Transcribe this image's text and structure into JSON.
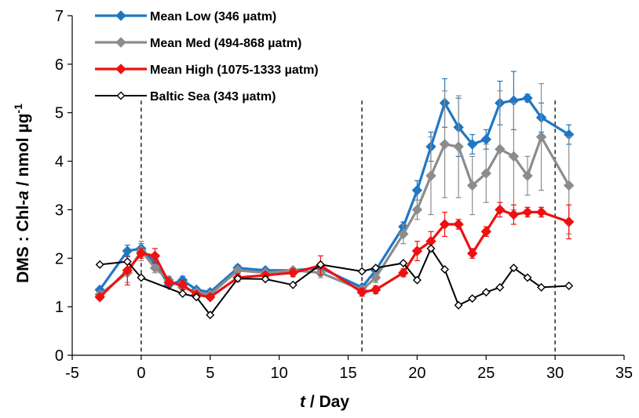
{
  "chart_data": {
    "type": "line",
    "xlabel_var": "t",
    "xlabel_unit": " / Day",
    "ylabel_main": "DMS : Chl-",
    "ylabel_var": "a",
    "ylabel_unit": " / nmol µg",
    "ylabel_sup": "-1",
    "xlim": [
      -5,
      35
    ],
    "ylim": [
      0,
      7
    ],
    "xticks": [
      -5,
      0,
      5,
      10,
      15,
      20,
      25,
      30,
      35
    ],
    "yticks": [
      0,
      1,
      2,
      3,
      4,
      5,
      6,
      7
    ],
    "grid": false,
    "legend_placement": "top-left",
    "vlines": [
      0,
      16,
      30
    ],
    "series": [
      {
        "name": "Mean Low (346 µatm)",
        "color": "#1f77c4",
        "marker": "diamond-filled",
        "x": [
          -3,
          -1,
          0,
          1,
          2,
          3,
          4,
          5,
          7,
          9,
          11,
          13,
          16,
          17,
          19,
          20,
          21,
          22,
          23,
          24,
          25,
          26,
          27,
          28,
          29,
          31
        ],
        "y": [
          1.35,
          2.15,
          2.2,
          1.9,
          1.45,
          1.55,
          1.35,
          1.3,
          1.8,
          1.75,
          1.75,
          1.8,
          1.4,
          1.75,
          2.65,
          3.4,
          4.3,
          5.2,
          4.7,
          4.35,
          4.45,
          5.2,
          5.25,
          5.3,
          4.9,
          4.55
        ],
        "err": [
          0.05,
          0.12,
          0.1,
          0.08,
          0.05,
          0.08,
          0.05,
          0.06,
          0.06,
          0.05,
          0.05,
          0.05,
          0.05,
          0.05,
          0.1,
          0.2,
          0.3,
          0.5,
          0.6,
          0.2,
          0.2,
          0.45,
          0.6,
          0.08,
          0.3,
          0.2
        ]
      },
      {
        "name": "Mean Med (494-868 µatm)",
        "color": "#8c8c8c",
        "marker": "diamond-filled",
        "x": [
          -3,
          -1,
          0,
          1,
          2,
          3,
          4,
          5,
          7,
          9,
          11,
          13,
          16,
          17,
          19,
          20,
          21,
          22,
          23,
          24,
          25,
          26,
          27,
          28,
          29,
          31
        ],
        "y": [
          1.25,
          1.7,
          2.15,
          1.8,
          1.55,
          1.4,
          1.3,
          1.25,
          1.75,
          1.7,
          1.75,
          1.7,
          1.35,
          1.6,
          2.5,
          3.0,
          3.7,
          4.35,
          4.3,
          3.5,
          3.75,
          4.25,
          4.1,
          3.7,
          4.5,
          3.5
        ],
        "err": [
          0.05,
          0.2,
          0.2,
          0.1,
          0.08,
          0.1,
          0.05,
          0.05,
          0.05,
          0.05,
          0.05,
          0.1,
          0.08,
          0.1,
          0.2,
          0.2,
          0.8,
          1.1,
          1.05,
          0.6,
          0.6,
          1.2,
          1.1,
          0.4,
          1.1,
          1.0
        ]
      },
      {
        "name": "Mean High (1075-1333 µatm)",
        "color": "#ee1111",
        "marker": "diamond-filled",
        "x": [
          -3,
          -1,
          0,
          1,
          2,
          3,
          4,
          5,
          7,
          9,
          11,
          13,
          16,
          17,
          19,
          20,
          21,
          22,
          23,
          24,
          25,
          26,
          27,
          28,
          29,
          31
        ],
        "y": [
          1.2,
          1.75,
          2.1,
          2.05,
          1.5,
          1.45,
          1.25,
          1.2,
          1.6,
          1.65,
          1.7,
          1.85,
          1.3,
          1.35,
          1.7,
          2.15,
          2.35,
          2.7,
          2.7,
          2.1,
          2.55,
          3.0,
          2.9,
          2.95,
          2.95,
          2.75
        ],
        "err": [
          0.05,
          0.3,
          0.1,
          0.15,
          0.1,
          0.1,
          0.05,
          0.05,
          0.08,
          0.05,
          0.08,
          0.2,
          0.08,
          0.08,
          0.08,
          0.2,
          0.2,
          0.25,
          0.1,
          0.1,
          0.1,
          0.15,
          0.2,
          0.1,
          0.1,
          0.35
        ]
      },
      {
        "name": "Baltic Sea (343 µatm)",
        "color": "#000000",
        "marker": "diamond-open",
        "x": [
          -3,
          -1,
          0,
          3,
          4,
          5,
          7,
          9,
          11,
          13,
          16,
          17,
          19,
          20,
          21,
          22,
          23,
          24,
          25,
          26,
          27,
          28,
          29,
          31
        ],
        "y": [
          1.87,
          1.93,
          1.6,
          1.27,
          1.2,
          0.83,
          1.58,
          1.57,
          1.45,
          1.87,
          1.73,
          1.8,
          1.9,
          1.55,
          2.2,
          1.77,
          1.03,
          1.17,
          1.3,
          1.4,
          1.8,
          1.6,
          1.4,
          1.43
        ],
        "err": []
      }
    ]
  }
}
